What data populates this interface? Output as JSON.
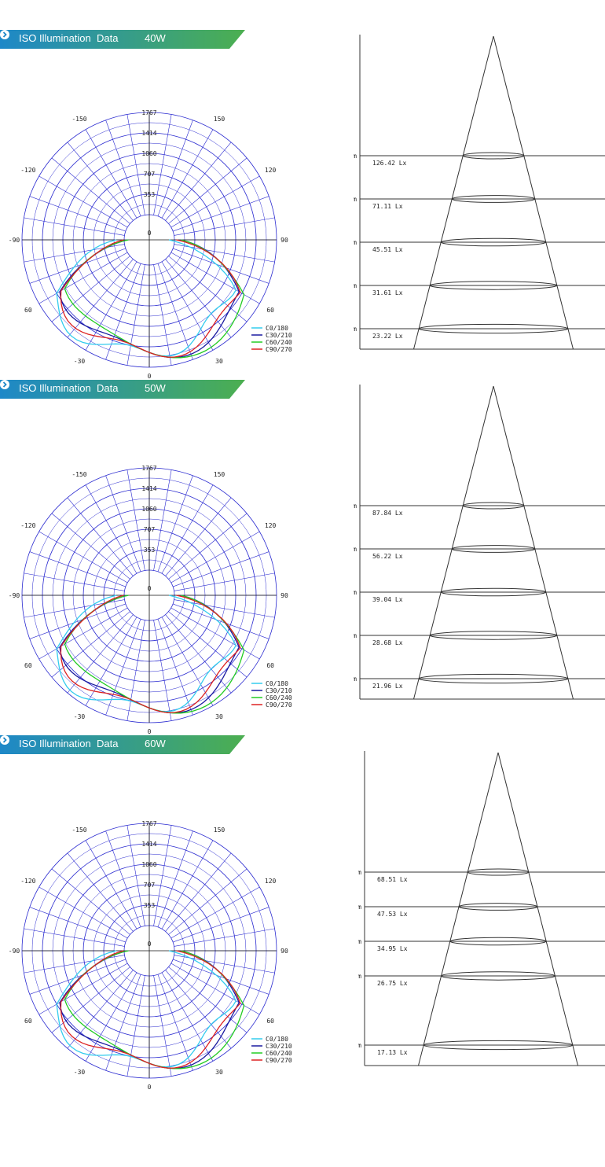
{
  "chart_data": [
    {
      "section": {
        "banner_label": "ISO Illumination  Data",
        "watt": "40W"
      },
      "polar": {
        "type": "polar",
        "radial_ticks": [
          "1767",
          "1414",
          "1060",
          "707",
          "353"
        ],
        "radial_max": 1767,
        "angle_labels": {
          "top": "180",
          "left_upper": "-150",
          "right_upper": "150",
          "left_mid_upper": "-120",
          "right_mid_upper": "120",
          "left": "-90",
          "right": "90",
          "left_mid_lower": "60",
          "right_mid_lower": "60",
          "left_lower": "-30",
          "right_lower": "30",
          "bottom": "0",
          "center": "0"
        },
        "legend": [
          {
            "name": "C0/180",
            "color": "#33ccee"
          },
          {
            "name": "C30/210",
            "color": "#1a1aa0"
          },
          {
            "name": "C60/240",
            "color": "#22cc22"
          },
          {
            "name": "C90/270",
            "color": "#dd2222"
          }
        ]
      },
      "cone": {
        "type": "illumination-cone",
        "rows": [
          {
            "distance": "3.00 m",
            "lux": "126.42 Lx",
            "d": 3
          },
          {
            "distance": "4.00 m",
            "lux": "71.11 Lx",
            "d": 4
          },
          {
            "distance": "5.00 m",
            "lux": "45.51 Lx",
            "d": 5
          },
          {
            "distance": "6.00 m",
            "lux": "31.61 Lx",
            "d": 6
          },
          {
            "distance": "7.00 m",
            "lux": "23.22 Lx",
            "d": 7
          }
        ]
      }
    },
    {
      "section": {
        "banner_label": "ISO Illumination  Data",
        "watt": "50W"
      },
      "polar": {
        "type": "polar",
        "radial_ticks": [
          "1767",
          "1414",
          "1060",
          "707",
          "353"
        ],
        "radial_max": 1767,
        "angle_labels": {
          "top": "180",
          "left_upper": "-150",
          "right_upper": "150",
          "left_mid_upper": "-120",
          "right_mid_upper": "120",
          "left": "-90",
          "right": "90",
          "left_mid_lower": "60",
          "right_mid_lower": "60",
          "left_lower": "-30",
          "right_lower": "30",
          "bottom": "0",
          "center": "0"
        },
        "legend": [
          {
            "name": "C0/180",
            "color": "#33ccee"
          },
          {
            "name": "C30/210",
            "color": "#1a1aa0"
          },
          {
            "name": "C60/240",
            "color": "#22cc22"
          },
          {
            "name": "C90/270",
            "color": "#dd2222"
          }
        ]
      },
      "cone": {
        "type": "illumination-cone",
        "rows": [
          {
            "distance": "4.00 m",
            "lux": "87.84 Lx",
            "d": 4
          },
          {
            "distance": "5.00 m",
            "lux": "56.22 Lx",
            "d": 5
          },
          {
            "distance": "6.00 m",
            "lux": "39.04 Lx",
            "d": 6
          },
          {
            "distance": "7.00 m",
            "lux": "28.68 Lx",
            "d": 7
          },
          {
            "distance": "8.00 m",
            "lux": "21.96 Lx",
            "d": 8
          }
        ]
      }
    },
    {
      "section": {
        "banner_label": "ISO Illumination  Data",
        "watt": "60W"
      },
      "polar": {
        "type": "polar",
        "radial_ticks": [
          "1767",
          "1414",
          "1060",
          "707",
          "353"
        ],
        "radial_max": 1767,
        "angle_labels": {
          "top": "180",
          "left_upper": "-150",
          "right_upper": "150",
          "left_mid_upper": "-120",
          "right_mid_upper": "120",
          "left": "-90",
          "right": "90",
          "left_mid_lower": "60",
          "right_mid_lower": "60",
          "left_lower": "-30",
          "right_lower": "30",
          "bottom": "0",
          "center": "0"
        },
        "legend": [
          {
            "name": "C0/180",
            "color": "#33ccee"
          },
          {
            "name": "C30/210",
            "color": "#1a1aa0"
          },
          {
            "name": "C60/240",
            "color": "#22cc22"
          },
          {
            "name": "C90/270",
            "color": "#dd2222"
          }
        ]
      },
      "cone": {
        "type": "illumination-cone",
        "rows": [
          {
            "distance": "5.00 m",
            "lux": "68.51 Lx",
            "d": 5
          },
          {
            "distance": "6.00 m",
            "lux": "47.53 Lx",
            "d": 6
          },
          {
            "distance": "7.00 m",
            "lux": "34.95 Lx",
            "d": 7
          },
          {
            "distance": "8.00 m",
            "lux": "26.75 Lx",
            "d": 8
          },
          {
            "distance": "10.00 m",
            "lux": "17.13 Lx",
            "d": 10
          }
        ]
      }
    }
  ],
  "colors": {
    "banner_start": "#1e88c8",
    "banner_end": "#4caf50",
    "grid": "#2a2ad0"
  }
}
